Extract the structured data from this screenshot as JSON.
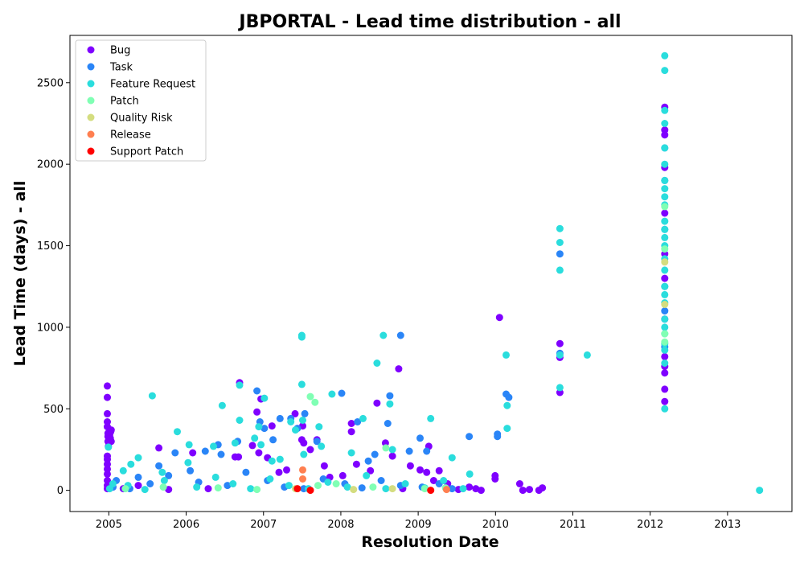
{
  "chart_data": {
    "type": "scatter",
    "title": "JBPORTAL - Lead time distribution - all",
    "xlabel": "Resolution Date",
    "ylabel": "Lead Time (days) - all",
    "xlim": [
      "2004-07-01",
      "2013-11-01"
    ],
    "ylim": [
      -130,
      2790
    ],
    "x_ticks": [
      "2005",
      "2006",
      "2007",
      "2008",
      "2009",
      "2010",
      "2011",
      "2012",
      "2013"
    ],
    "y_ticks": [
      0,
      500,
      1000,
      1500,
      2000,
      2500
    ],
    "grid": false,
    "legend_position": "top-left",
    "series": [
      {
        "name": "Bug",
        "color": "#7f00ff",
        "points": [
          [
            "2004-12-25",
            640
          ],
          [
            "2004-12-25",
            570
          ],
          [
            "2004-12-25",
            470
          ],
          [
            "2004-12-25",
            420
          ],
          [
            "2004-12-25",
            390
          ],
          [
            "2004-12-28",
            350
          ],
          [
            "2004-12-28",
            330
          ],
          [
            "2004-12-28",
            300
          ],
          [
            "2004-12-30",
            270
          ],
          [
            "2005-01-05",
            340
          ],
          [
            "2005-01-08",
            320
          ],
          [
            "2005-01-10",
            360
          ],
          [
            "2005-01-12",
            300
          ],
          [
            "2005-01-12",
            370
          ],
          [
            "2004-12-25",
            210
          ],
          [
            "2004-12-25",
            190
          ],
          [
            "2004-12-25",
            160
          ],
          [
            "2004-12-25",
            130
          ],
          [
            "2004-12-25",
            100
          ],
          [
            "2004-12-25",
            60
          ],
          [
            "2004-12-25",
            30
          ],
          [
            "2004-12-25",
            10
          ],
          [
            "2005-01-20",
            20
          ],
          [
            "2005-03-10",
            10
          ],
          [
            "2005-05-20",
            30
          ],
          [
            "2005-08-25",
            260
          ],
          [
            "2005-10-10",
            5
          ],
          [
            "2006-02-01",
            230
          ],
          [
            "2006-04-15",
            10
          ],
          [
            "2006-08-20",
            205
          ],
          [
            "2006-09-10",
            660
          ],
          [
            "2006-09-05",
            205
          ],
          [
            "2006-11-10",
            275
          ],
          [
            "2006-12-01",
            480
          ],
          [
            "2006-12-20",
            560
          ],
          [
            "2006-12-10",
            230
          ],
          [
            "2007-01-20",
            200
          ],
          [
            "2007-02-10",
            395
          ],
          [
            "2007-03-15",
            110
          ],
          [
            "2007-04-20",
            125
          ],
          [
            "2007-05-30",
            470
          ],
          [
            "2007-07-01",
            310
          ],
          [
            "2007-07-05",
            395
          ],
          [
            "2007-07-10",
            290
          ],
          [
            "2007-08-10",
            250
          ],
          [
            "2007-09-10",
            310
          ],
          [
            "2007-10-15",
            150
          ],
          [
            "2007-11-10",
            80
          ],
          [
            "2008-01-10",
            90
          ],
          [
            "2008-02-20",
            410
          ],
          [
            "2008-02-20",
            360
          ],
          [
            "2008-03-15",
            160
          ],
          [
            "2008-05-20",
            120
          ],
          [
            "2008-06-20",
            535
          ],
          [
            "2008-07-30",
            290
          ],
          [
            "2008-09-01",
            210
          ],
          [
            "2008-10-01",
            745
          ],
          [
            "2008-10-20",
            10
          ],
          [
            "2008-11-25",
            150
          ],
          [
            "2009-01-10",
            125
          ],
          [
            "2009-02-10",
            110
          ],
          [
            "2009-02-20",
            270
          ],
          [
            "2009-03-15",
            60
          ],
          [
            "2009-04-10",
            120
          ],
          [
            "2009-05-20",
            40
          ],
          [
            "2009-07-10",
            5
          ],
          [
            "2009-08-30",
            20
          ],
          [
            "2009-09-30",
            10
          ],
          [
            "2009-10-25",
            0
          ],
          [
            "2009-12-30",
            90
          ],
          [
            "2009-12-30",
            70
          ],
          [
            "2010-01-20",
            1060
          ],
          [
            "2010-04-25",
            40
          ],
          [
            "2010-05-10",
            0
          ],
          [
            "2010-06-10",
            5
          ],
          [
            "2010-07-25",
            0
          ],
          [
            "2010-08-10",
            15
          ],
          [
            "2010-11-01",
            900
          ],
          [
            "2010-11-01",
            600
          ],
          [
            "2010-11-01",
            815
          ],
          [
            "2012-03-10",
            2350
          ],
          [
            "2012-03-10",
            2210
          ],
          [
            "2012-03-10",
            2180
          ],
          [
            "2012-03-10",
            1980
          ],
          [
            "2012-03-10",
            1700
          ],
          [
            "2012-03-10",
            1450
          ],
          [
            "2012-03-10",
            1300
          ],
          [
            "2012-03-10",
            1050
          ],
          [
            "2012-03-10",
            820
          ],
          [
            "2012-03-10",
            760
          ],
          [
            "2012-03-10",
            720
          ],
          [
            "2012-03-10",
            620
          ],
          [
            "2012-03-10",
            545
          ]
        ]
      },
      {
        "name": "Task",
        "color": "#2a85f7",
        "points": [
          [
            "2005-02-05",
            60
          ],
          [
            "2005-05-20",
            80
          ],
          [
            "2005-08-25",
            150
          ],
          [
            "2005-11-10",
            230
          ],
          [
            "2006-01-20",
            120
          ],
          [
            "2006-04-01",
            240
          ],
          [
            "2006-06-01",
            280
          ],
          [
            "2006-06-15",
            220
          ],
          [
            "2006-09-01",
            300
          ],
          [
            "2006-12-01",
            610
          ],
          [
            "2006-12-15",
            420
          ],
          [
            "2007-01-05",
            380
          ],
          [
            "2007-02-15",
            310
          ],
          [
            "2007-03-20",
            440
          ],
          [
            "2007-05-10",
            440
          ],
          [
            "2007-06-10",
            380
          ],
          [
            "2007-07-15",
            470
          ],
          [
            "2007-09-10",
            300
          ],
          [
            "2008-01-05",
            595
          ],
          [
            "2008-03-20",
            420
          ],
          [
            "2008-05-10",
            180
          ],
          [
            "2008-06-10",
            220
          ],
          [
            "2008-08-10",
            410
          ],
          [
            "2008-08-20",
            580
          ],
          [
            "2008-10-10",
            950
          ],
          [
            "2008-11-20",
            240
          ],
          [
            "2009-01-10",
            320
          ],
          [
            "2009-02-10",
            240
          ],
          [
            "2009-06-10",
            10
          ],
          [
            "2009-08-30",
            330
          ],
          [
            "2010-01-10",
            345
          ],
          [
            "2010-01-10",
            330
          ],
          [
            "2010-02-20",
            590
          ],
          [
            "2010-03-05",
            570
          ],
          [
            "2010-11-01",
            1450
          ],
          [
            "2010-11-01",
            840
          ],
          [
            "2012-03-10",
            2100
          ],
          [
            "2012-03-10",
            1900
          ],
          [
            "2012-03-10",
            1600
          ],
          [
            "2012-03-10",
            1250
          ],
          [
            "2012-03-10",
            1100
          ],
          [
            "2012-03-10",
            880
          ],
          [
            "2005-01-20",
            20
          ],
          [
            "2005-04-10",
            10
          ],
          [
            "2005-07-15",
            40
          ],
          [
            "2005-10-10",
            90
          ],
          [
            "2006-03-01",
            50
          ],
          [
            "2006-07-15",
            30
          ],
          [
            "2006-10-10",
            110
          ],
          [
            "2007-01-20",
            60
          ],
          [
            "2007-04-10",
            20
          ],
          [
            "2007-07-10",
            10
          ],
          [
            "2007-10-10",
            70
          ],
          [
            "2008-01-20",
            40
          ],
          [
            "2008-04-10",
            15
          ],
          [
            "2008-07-10",
            60
          ],
          [
            "2008-10-10",
            30
          ],
          [
            "2009-01-20",
            20
          ],
          [
            "2009-04-10",
            40
          ]
        ]
      },
      {
        "name": "Feature Request",
        "color": "#2adddd",
        "points": [
          [
            "2004-12-30",
            265
          ],
          [
            "2005-01-20",
            40
          ],
          [
            "2005-03-10",
            120
          ],
          [
            "2005-04-15",
            160
          ],
          [
            "2005-05-20",
            200
          ],
          [
            "2005-07-25",
            580
          ],
          [
            "2005-09-10",
            110
          ],
          [
            "2005-11-20",
            360
          ],
          [
            "2006-01-10",
            170
          ],
          [
            "2006-01-15",
            280
          ],
          [
            "2006-05-10",
            270
          ],
          [
            "2006-06-20",
            520
          ],
          [
            "2006-08-20",
            290
          ],
          [
            "2006-09-10",
            430
          ],
          [
            "2006-09-10",
            645
          ],
          [
            "2006-11-20",
            320
          ],
          [
            "2006-12-10",
            390
          ],
          [
            "2006-12-20",
            280
          ],
          [
            "2007-01-05",
            565
          ],
          [
            "2007-02-10",
            180
          ],
          [
            "2007-03-20",
            190
          ],
          [
            "2007-05-10",
            420
          ],
          [
            "2007-06-01",
            370
          ],
          [
            "2007-07-01",
            950
          ],
          [
            "2007-07-01",
            940
          ],
          [
            "2007-07-01",
            650
          ],
          [
            "2007-07-05",
            430
          ],
          [
            "2007-07-10",
            220
          ],
          [
            "2007-09-20",
            390
          ],
          [
            "2007-10-01",
            270
          ],
          [
            "2007-11-20",
            590
          ],
          [
            "2008-02-20",
            230
          ],
          [
            "2008-04-15",
            440
          ],
          [
            "2008-06-20",
            780
          ],
          [
            "2008-07-20",
            950
          ],
          [
            "2008-08-20",
            530
          ],
          [
            "2008-09-01",
            250
          ],
          [
            "2009-03-01",
            440
          ],
          [
            "2009-06-10",
            200
          ],
          [
            "2009-09-01",
            100
          ],
          [
            "2010-02-20",
            830
          ],
          [
            "2010-02-25",
            520
          ],
          [
            "2010-02-25",
            380
          ],
          [
            "2010-11-01",
            1605
          ],
          [
            "2010-11-01",
            1520
          ],
          [
            "2010-11-01",
            1350
          ],
          [
            "2010-11-01",
            830
          ],
          [
            "2010-11-01",
            630
          ],
          [
            "2011-03-10",
            830
          ],
          [
            "2012-03-10",
            2665
          ],
          [
            "2012-03-10",
            2575
          ],
          [
            "2012-03-10",
            2330
          ],
          [
            "2012-03-10",
            2250
          ],
          [
            "2012-03-10",
            2100
          ],
          [
            "2012-03-10",
            2000
          ],
          [
            "2012-03-10",
            1900
          ],
          [
            "2012-03-10",
            1850
          ],
          [
            "2012-03-10",
            1800
          ],
          [
            "2012-03-10",
            1750
          ],
          [
            "2012-03-10",
            1650
          ],
          [
            "2012-03-10",
            1600
          ],
          [
            "2012-03-10",
            1550
          ],
          [
            "2012-03-10",
            1500
          ],
          [
            "2012-03-10",
            1420
          ],
          [
            "2012-03-10",
            1350
          ],
          [
            "2012-03-10",
            1250
          ],
          [
            "2012-03-10",
            1200
          ],
          [
            "2012-03-10",
            1150
          ],
          [
            "2012-03-10",
            1050
          ],
          [
            "2012-03-10",
            1000
          ],
          [
            "2012-03-10",
            960
          ],
          [
            "2012-03-10",
            900
          ],
          [
            "2012-03-10",
            860
          ],
          [
            "2012-03-10",
            780
          ],
          [
            "2012-03-10",
            500
          ],
          [
            "2013-06-01",
            0
          ],
          [
            "2005-01-05",
            10
          ],
          [
            "2005-04-01",
            30
          ],
          [
            "2005-06-20",
            5
          ],
          [
            "2005-09-20",
            60
          ],
          [
            "2006-02-20",
            20
          ],
          [
            "2006-05-20",
            80
          ],
          [
            "2006-08-10",
            40
          ],
          [
            "2006-11-01",
            10
          ],
          [
            "2007-02-01",
            70
          ],
          [
            "2007-05-01",
            30
          ],
          [
            "2007-08-01",
            10
          ],
          [
            "2007-11-01",
            50
          ],
          [
            "2008-02-01",
            20
          ],
          [
            "2008-05-01",
            90
          ],
          [
            "2008-08-01",
            10
          ],
          [
            "2008-11-01",
            40
          ],
          [
            "2009-02-01",
            15
          ],
          [
            "2009-05-01",
            60
          ],
          [
            "2009-08-01",
            10
          ]
        ]
      },
      {
        "name": "Patch",
        "color": "#80ffb4",
        "points": [
          [
            "2005-03-20",
            10
          ],
          [
            "2005-09-15",
            20
          ],
          [
            "2006-06-01",
            15
          ],
          [
            "2006-12-01",
            5
          ],
          [
            "2007-08-10",
            575
          ],
          [
            "2007-09-01",
            540
          ],
          [
            "2007-09-15",
            30
          ],
          [
            "2007-12-10",
            40
          ],
          [
            "2008-06-01",
            20
          ],
          [
            "2008-08-01",
            260
          ],
          [
            "2009-02-01",
            10
          ],
          [
            "2009-05-10",
            15
          ],
          [
            "2012-03-10",
            1740
          ],
          [
            "2012-03-10",
            1480
          ],
          [
            "2012-03-10",
            960
          ],
          [
            "2012-03-10",
            910
          ]
        ]
      },
      {
        "name": "Quality Risk",
        "color": "#d4dd80",
        "points": [
          [
            "2007-06-01",
            10
          ],
          [
            "2008-03-01",
            5
          ],
          [
            "2008-09-01",
            10
          ],
          [
            "2012-03-10",
            1400
          ],
          [
            "2012-03-10",
            1140
          ]
        ]
      },
      {
        "name": "Release",
        "color": "#ff7f50",
        "points": [
          [
            "2007-07-05",
            125
          ],
          [
            "2007-07-05",
            70
          ],
          [
            "2009-05-15",
            5
          ]
        ]
      },
      {
        "name": "Support Patch",
        "color": "#ff0000",
        "points": [
          [
            "2007-06-10",
            10
          ],
          [
            "2007-08-10",
            0
          ],
          [
            "2009-03-01",
            0
          ]
        ]
      }
    ]
  }
}
